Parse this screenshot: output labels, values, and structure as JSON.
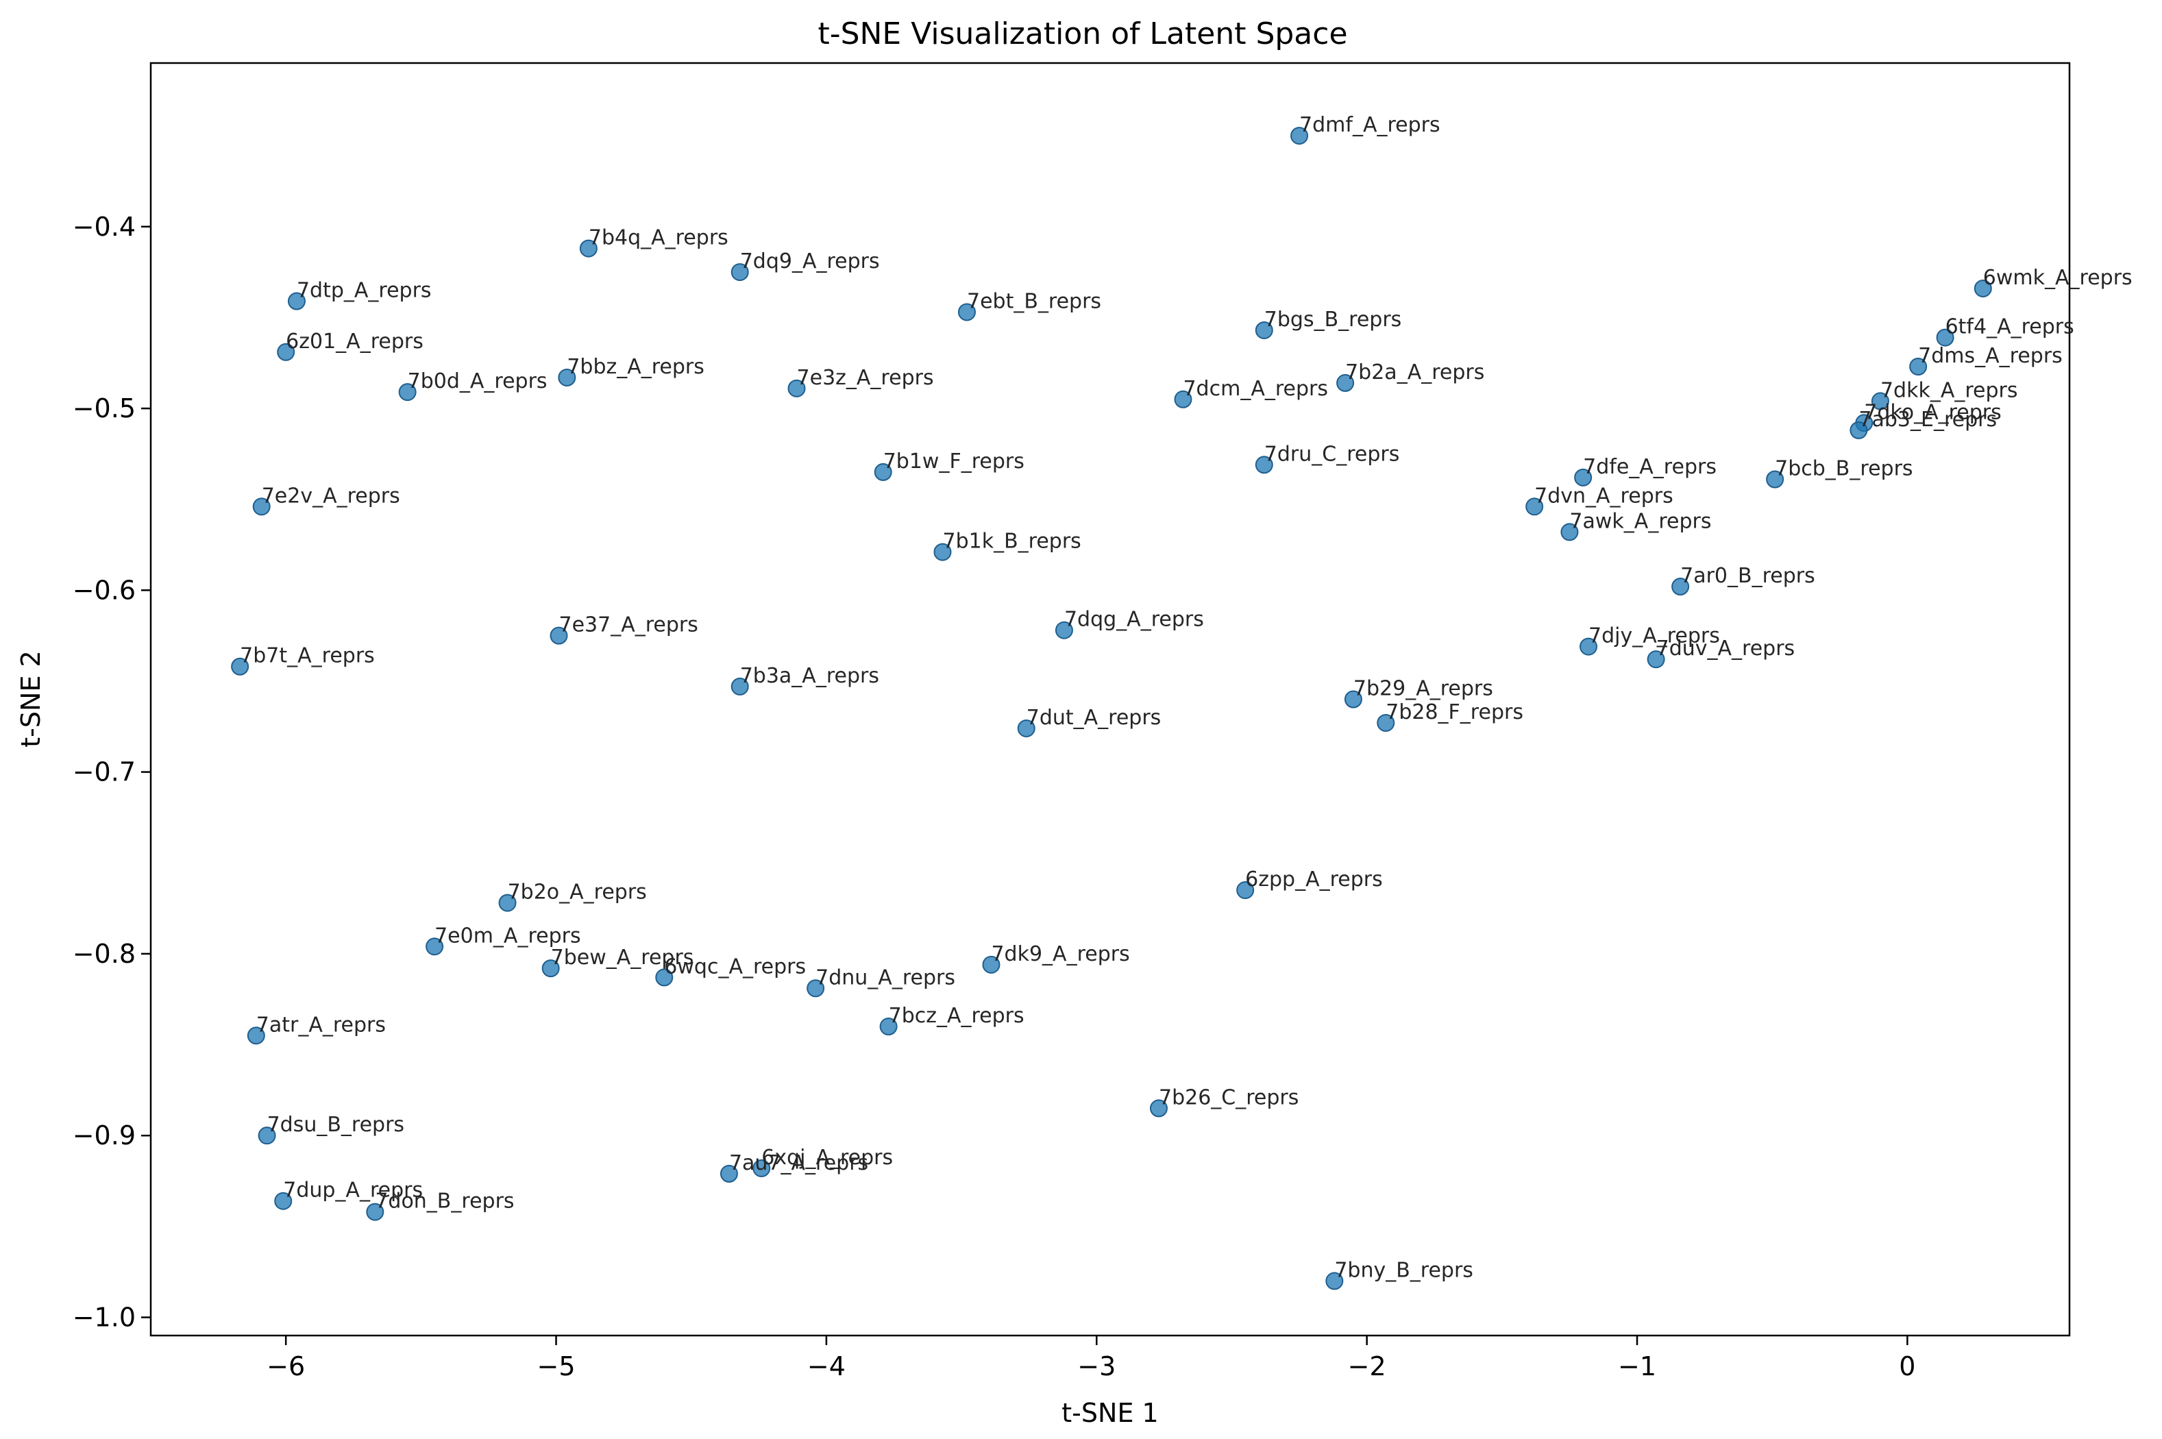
{
  "chart_data": {
    "type": "scatter",
    "title": "t-SNE Visualization of Latent Space",
    "xlabel": "t-SNE 1",
    "ylabel": "t-SNE 2",
    "xlim": [
      -6.5,
      0.6
    ],
    "ylim": [
      -1.01,
      -0.31
    ],
    "xticks": [
      -6,
      -5,
      -4,
      -3,
      -2,
      -1,
      0
    ],
    "yticks": [
      -1.0,
      -0.9,
      -0.8,
      -0.7,
      -0.6,
      -0.5,
      -0.4
    ],
    "xtick_labels": [
      "−6",
      "−5",
      "−4",
      "−3",
      "−2",
      "−1",
      "0"
    ],
    "ytick_labels": [
      "−1.0",
      "−0.9",
      "−0.8",
      "−0.7",
      "−0.6",
      "−0.5",
      "−0.4"
    ],
    "grid": false,
    "color": "#1f77b4",
    "points": [
      {
        "label": "7dmf_A_reprs",
        "x": -2.25,
        "y": -0.35
      },
      {
        "label": "7b4q_A_reprs",
        "x": -4.88,
        "y": -0.412
      },
      {
        "label": "7dq9_A_reprs",
        "x": -4.32,
        "y": -0.425
      },
      {
        "label": "6wmk_A_reprs",
        "x": 0.28,
        "y": -0.434
      },
      {
        "label": "7dtp_A_reprs",
        "x": -5.96,
        "y": -0.441
      },
      {
        "label": "7ebt_B_reprs",
        "x": -3.48,
        "y": -0.447
      },
      {
        "label": "7bgs_B_reprs",
        "x": -2.38,
        "y": -0.457
      },
      {
        "label": "6tf4_A_reprs",
        "x": 0.14,
        "y": -0.461
      },
      {
        "label": "6z01_A_reprs",
        "x": -6.0,
        "y": -0.469
      },
      {
        "label": "7dms_A_reprs",
        "x": 0.04,
        "y": -0.477
      },
      {
        "label": "7bbz_A_reprs",
        "x": -4.96,
        "y": -0.483
      },
      {
        "label": "7b2a_A_reprs",
        "x": -2.08,
        "y": -0.486
      },
      {
        "label": "7e3z_A_reprs",
        "x": -4.11,
        "y": -0.489
      },
      {
        "label": "7b0d_A_reprs",
        "x": -5.55,
        "y": -0.491
      },
      {
        "label": "7dcm_A_reprs",
        "x": -2.68,
        "y": -0.495
      },
      {
        "label": "7dkk_A_reprs",
        "x": -0.1,
        "y": -0.496
      },
      {
        "label": "7dko_A_reprs",
        "x": -0.16,
        "y": -0.508
      },
      {
        "label": "7ab3_E_reprs",
        "x": -0.18,
        "y": -0.512
      },
      {
        "label": "7dru_C_reprs",
        "x": -2.38,
        "y": -0.531
      },
      {
        "label": "7b1w_F_reprs",
        "x": -3.79,
        "y": -0.535
      },
      {
        "label": "7dfe_A_reprs",
        "x": -1.2,
        "y": -0.538
      },
      {
        "label": "7bcb_B_reprs",
        "x": -0.49,
        "y": -0.539
      },
      {
        "label": "7e2v_A_reprs",
        "x": -6.09,
        "y": -0.554
      },
      {
        "label": "7dvn_A_reprs",
        "x": -1.38,
        "y": -0.554
      },
      {
        "label": "7awk_A_reprs",
        "x": -1.25,
        "y": -0.568
      },
      {
        "label": "7b1k_B_reprs",
        "x": -3.57,
        "y": -0.579
      },
      {
        "label": "7ar0_B_reprs",
        "x": -0.84,
        "y": -0.598
      },
      {
        "label": "7dqg_A_reprs",
        "x": -3.12,
        "y": -0.622
      },
      {
        "label": "7e37_A_reprs",
        "x": -4.99,
        "y": -0.625
      },
      {
        "label": "7djy_A_reprs",
        "x": -1.18,
        "y": -0.631
      },
      {
        "label": "7duv_A_reprs",
        "x": -0.93,
        "y": -0.638
      },
      {
        "label": "7b7t_A_reprs",
        "x": -6.17,
        "y": -0.642
      },
      {
        "label": "7b3a_A_reprs",
        "x": -4.32,
        "y": -0.653
      },
      {
        "label": "7b29_A_reprs",
        "x": -2.05,
        "y": -0.66
      },
      {
        "label": "7b28_F_reprs",
        "x": -1.93,
        "y": -0.673
      },
      {
        "label": "7dut_A_reprs",
        "x": -3.26,
        "y": -0.676
      },
      {
        "label": "6zpp_A_reprs",
        "x": -2.45,
        "y": -0.765
      },
      {
        "label": "7b2o_A_reprs",
        "x": -5.18,
        "y": -0.772
      },
      {
        "label": "7e0m_A_reprs",
        "x": -5.45,
        "y": -0.796
      },
      {
        "label": "7dk9_A_reprs",
        "x": -3.39,
        "y": -0.806
      },
      {
        "label": "7bew_A_reprs",
        "x": -5.02,
        "y": -0.808
      },
      {
        "label": "6wqc_A_reprs",
        "x": -4.6,
        "y": -0.813
      },
      {
        "label": "7dnu_A_reprs",
        "x": -4.04,
        "y": -0.819
      },
      {
        "label": "7bcz_A_reprs",
        "x": -3.77,
        "y": -0.84
      },
      {
        "label": "7atr_A_reprs",
        "x": -6.11,
        "y": -0.845
      },
      {
        "label": "7b26_C_reprs",
        "x": -2.77,
        "y": -0.885
      },
      {
        "label": "7dsu_B_reprs",
        "x": -6.07,
        "y": -0.9
      },
      {
        "label": "6xqj_A_reprs",
        "x": -4.24,
        "y": -0.918
      },
      {
        "label": "7au7_A_reprs",
        "x": -4.36,
        "y": -0.921
      },
      {
        "label": "7dup_A_reprs",
        "x": -6.01,
        "y": -0.936
      },
      {
        "label": "7don_B_reprs",
        "x": -5.67,
        "y": -0.942
      },
      {
        "label": "7bny_B_reprs",
        "x": -2.12,
        "y": -0.98
      }
    ]
  }
}
